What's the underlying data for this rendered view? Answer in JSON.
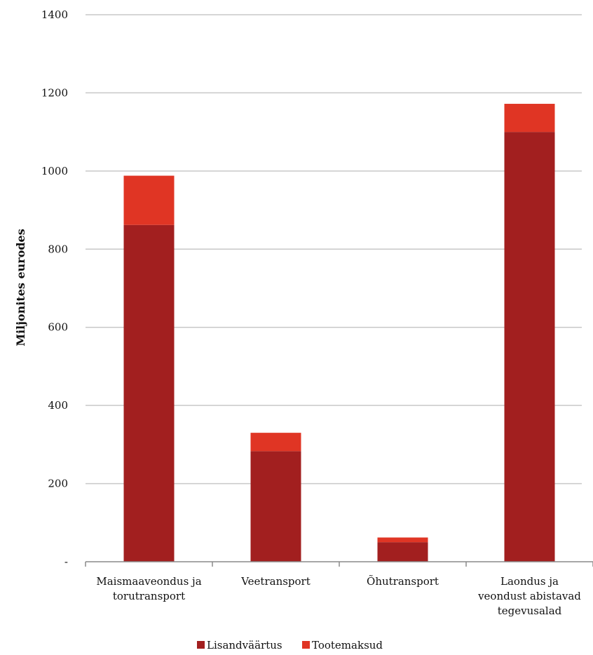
{
  "chart_data": {
    "type": "bar",
    "stacked": true,
    "categories": [
      [
        "Maismaaveondus ja",
        "torutransport"
      ],
      [
        "Veetransport"
      ],
      [
        "Õhutransport"
      ],
      [
        "Laondus ja",
        "veondust abistavad",
        "tegevusalad"
      ]
    ],
    "series": [
      {
        "name": "Lisandväärtus",
        "color": "#a21f1f",
        "values": [
          862,
          283,
          50,
          1100
        ]
      },
      {
        "name": "Tootemaksud",
        "color": "#e03524",
        "values": [
          126,
          47,
          12,
          72
        ]
      }
    ],
    "ylabel": "Miljonites eurodes",
    "ylim": [
      0,
      1400
    ],
    "yticks": [
      {
        "value": 0,
        "label": "-"
      },
      {
        "value": 200,
        "label": "200"
      },
      {
        "value": 400,
        "label": "400"
      },
      {
        "value": 600,
        "label": "600"
      },
      {
        "value": 800,
        "label": "800"
      },
      {
        "value": 1000,
        "label": "1000"
      },
      {
        "value": 1200,
        "label": "1200"
      },
      {
        "value": 1400,
        "label": "1400"
      }
    ],
    "grid": true,
    "legend_position": "bottom"
  }
}
